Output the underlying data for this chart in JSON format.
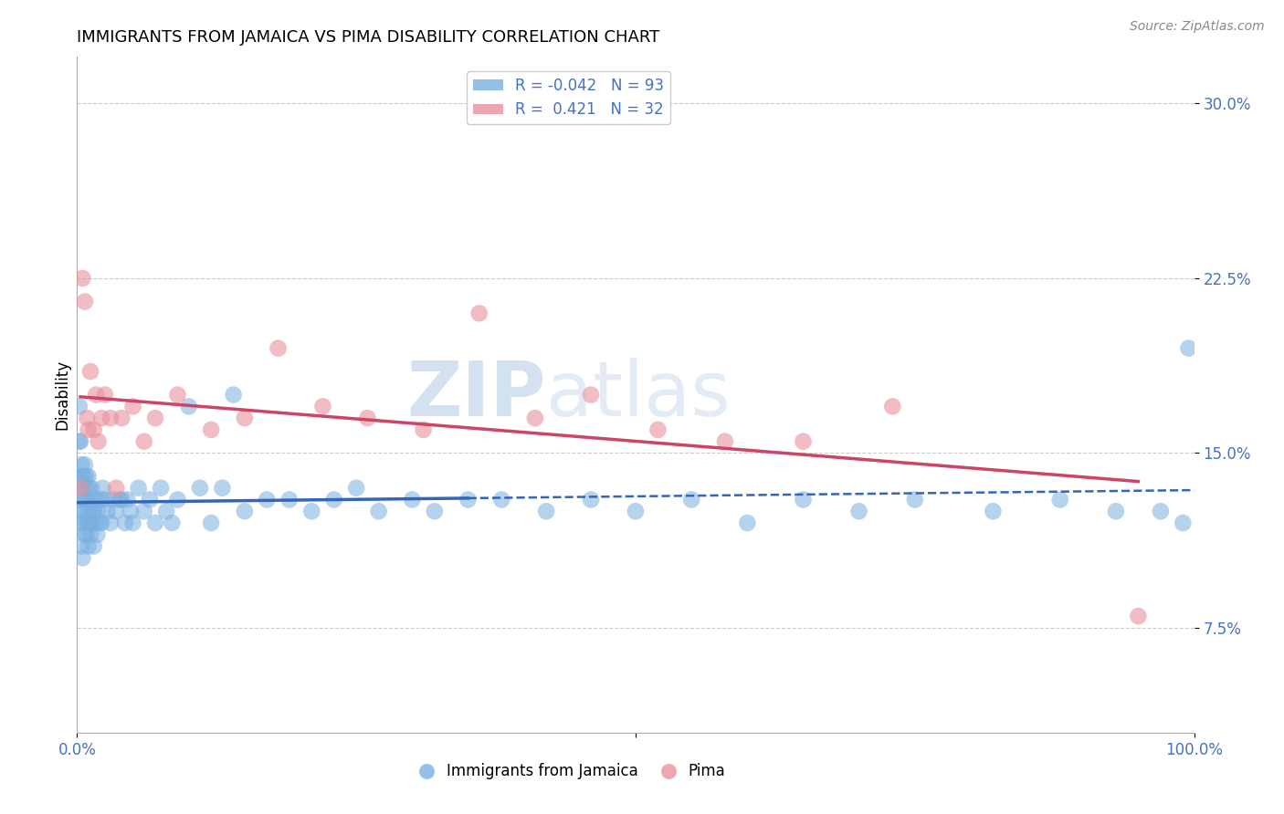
{
  "title": "IMMIGRANTS FROM JAMAICA VS PIMA DISABILITY CORRELATION CHART",
  "source_text": "Source: ZipAtlas.com",
  "ylabel": "Disability",
  "xlim": [
    0.0,
    1.0
  ],
  "ylim": [
    0.03,
    0.32
  ],
  "yticks": [
    0.075,
    0.15,
    0.225,
    0.3
  ],
  "yticklabels": [
    "7.5%",
    "15.0%",
    "22.5%",
    "30.0%"
  ],
  "blue_R": -0.042,
  "blue_N": 93,
  "pink_R": 0.421,
  "pink_N": 32,
  "blue_color": "#7ab0e0",
  "pink_color": "#e8919e",
  "blue_line_color": "#3366bb",
  "pink_line_color": "#cc4466",
  "legend_blue_label": "Immigrants from Jamaica",
  "legend_pink_label": "Pima",
  "background_color": "#ffffff",
  "grid_color": "#cccccc",
  "blue_scatter_x": [
    0.0,
    0.001,
    0.001,
    0.002,
    0.002,
    0.003,
    0.003,
    0.003,
    0.004,
    0.004,
    0.004,
    0.005,
    0.005,
    0.005,
    0.006,
    0.006,
    0.007,
    0.007,
    0.007,
    0.008,
    0.008,
    0.008,
    0.009,
    0.009,
    0.01,
    0.01,
    0.01,
    0.011,
    0.011,
    0.012,
    0.012,
    0.013,
    0.013,
    0.014,
    0.015,
    0.015,
    0.016,
    0.017,
    0.018,
    0.019,
    0.02,
    0.021,
    0.022,
    0.023,
    0.025,
    0.027,
    0.03,
    0.032,
    0.035,
    0.038,
    0.04,
    0.043,
    0.045,
    0.048,
    0.05,
    0.055,
    0.06,
    0.065,
    0.07,
    0.075,
    0.08,
    0.085,
    0.09,
    0.1,
    0.11,
    0.12,
    0.13,
    0.14,
    0.15,
    0.17,
    0.19,
    0.21,
    0.23,
    0.25,
    0.27,
    0.3,
    0.32,
    0.35,
    0.38,
    0.42,
    0.46,
    0.5,
    0.55,
    0.6,
    0.65,
    0.7,
    0.75,
    0.82,
    0.88,
    0.93,
    0.97,
    0.99,
    0.995
  ],
  "blue_scatter_y": [
    0.14,
    0.135,
    0.125,
    0.17,
    0.155,
    0.12,
    0.14,
    0.155,
    0.11,
    0.13,
    0.145,
    0.105,
    0.12,
    0.135,
    0.125,
    0.14,
    0.115,
    0.13,
    0.145,
    0.115,
    0.13,
    0.14,
    0.12,
    0.135,
    0.11,
    0.125,
    0.14,
    0.12,
    0.135,
    0.115,
    0.13,
    0.12,
    0.135,
    0.125,
    0.11,
    0.125,
    0.12,
    0.13,
    0.115,
    0.125,
    0.12,
    0.13,
    0.12,
    0.135,
    0.13,
    0.125,
    0.12,
    0.13,
    0.125,
    0.13,
    0.13,
    0.12,
    0.13,
    0.125,
    0.12,
    0.135,
    0.125,
    0.13,
    0.12,
    0.135,
    0.125,
    0.12,
    0.13,
    0.17,
    0.135,
    0.12,
    0.135,
    0.175,
    0.125,
    0.13,
    0.13,
    0.125,
    0.13,
    0.135,
    0.125,
    0.13,
    0.125,
    0.13,
    0.13,
    0.125,
    0.13,
    0.125,
    0.13,
    0.12,
    0.13,
    0.125,
    0.13,
    0.125,
    0.13,
    0.125,
    0.125,
    0.12,
    0.195
  ],
  "pink_scatter_x": [
    0.003,
    0.005,
    0.007,
    0.009,
    0.01,
    0.012,
    0.015,
    0.017,
    0.019,
    0.022,
    0.025,
    0.03,
    0.035,
    0.04,
    0.05,
    0.06,
    0.07,
    0.09,
    0.12,
    0.15,
    0.18,
    0.22,
    0.26,
    0.31,
    0.36,
    0.41,
    0.46,
    0.52,
    0.58,
    0.65,
    0.73,
    0.95
  ],
  "pink_scatter_y": [
    0.135,
    0.225,
    0.215,
    0.165,
    0.16,
    0.185,
    0.16,
    0.175,
    0.155,
    0.165,
    0.175,
    0.165,
    0.135,
    0.165,
    0.17,
    0.155,
    0.165,
    0.175,
    0.16,
    0.165,
    0.195,
    0.17,
    0.165,
    0.16,
    0.21,
    0.165,
    0.175,
    0.16,
    0.155,
    0.155,
    0.17,
    0.08
  ]
}
